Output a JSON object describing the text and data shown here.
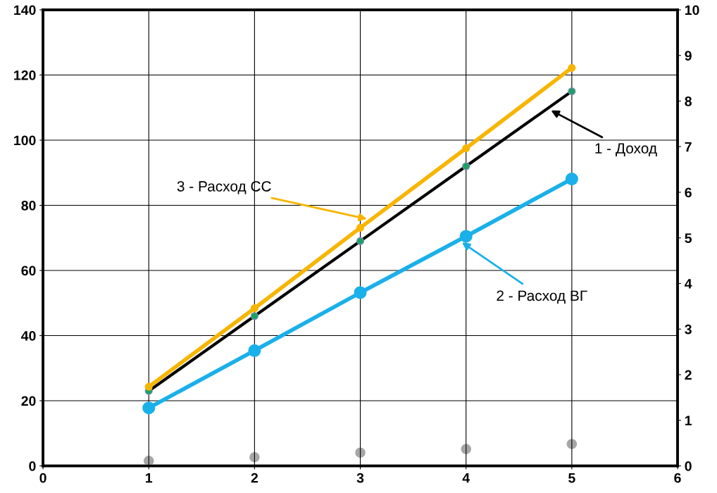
{
  "chart_data": {
    "type": "line",
    "x": [
      1,
      2,
      3,
      4,
      5
    ],
    "series": [
      {
        "name": "1 - Доход",
        "color": "#000000",
        "values": [
          23,
          46,
          69,
          92,
          115
        ]
      },
      {
        "name": "2 - Расход ВГ",
        "color": "#1ab0ea",
        "values": [
          17.8,
          35.4,
          53.2,
          70.5,
          88.1
        ]
      },
      {
        "name": "3 - Расход СС",
        "color": "#f7b500",
        "values": [
          24.3,
          48.4,
          73.1,
          97.5,
          122.2
        ]
      },
      {
        "type": "scatter",
        "axis": "y2",
        "color": "#a6a6a6",
        "values": [
          0.11,
          0.19,
          0.29,
          0.37,
          0.48
        ]
      }
    ],
    "xlim": [
      0,
      6
    ],
    "xticks": [
      0,
      1,
      2,
      3,
      4,
      5,
      6
    ],
    "ylim": [
      0,
      140
    ],
    "yticks": [
      0,
      20,
      40,
      60,
      80,
      100,
      120,
      140
    ],
    "y2lim": [
      0,
      10
    ],
    "y2ticks": [
      0,
      1,
      2,
      3,
      4,
      5,
      6,
      7,
      8,
      9,
      10
    ],
    "grid": true,
    "marker": "circle",
    "line_style": "solid"
  }
}
